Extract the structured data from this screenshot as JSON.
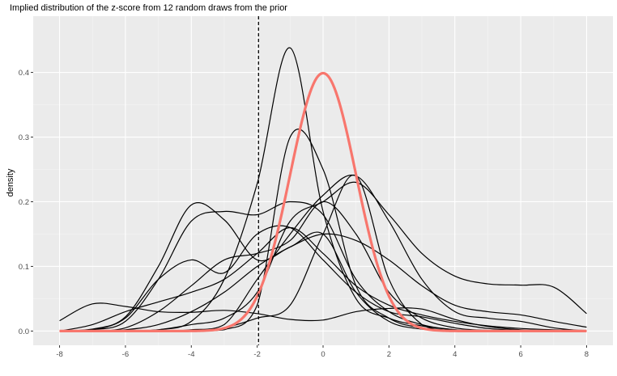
{
  "chart_data": {
    "type": "line",
    "title": "Implied distribution of the z-score from 12 random draws from the prior",
    "xlabel": "",
    "ylabel": "density",
    "xlim": [
      -8.8,
      8.8
    ],
    "ylim": [
      -0.022,
      0.487
    ],
    "x_ticks": [
      -8,
      -6,
      -4,
      -2,
      0,
      2,
      4,
      6,
      8
    ],
    "y_ticks": [
      0.0,
      0.1,
      0.2,
      0.3,
      0.4
    ],
    "y_tick_labels": [
      "0.0",
      "0.1",
      "0.2",
      "0.3",
      "0.4"
    ],
    "grid": true,
    "legend": "none",
    "reference_line": {
      "x": -1.96,
      "style": "dashed",
      "color": "#000000"
    },
    "reference_curve": {
      "distribution": "standard normal",
      "mean": 0,
      "sd": 1,
      "color": "#F8766D"
    },
    "series": [
      {
        "x": [
          -8,
          -7,
          -6,
          -5,
          -4,
          -3,
          -2,
          -1,
          0,
          1,
          2,
          3,
          4,
          5,
          6,
          7,
          8
        ],
        "values": [
          0.016,
          0.042,
          0.038,
          0.03,
          0.029,
          0.032,
          0.027,
          0.018,
          0.017,
          0.03,
          0.035,
          0.034,
          0.018,
          0.007,
          0.002,
          0.001,
          0.0
        ]
      },
      {
        "x": [
          -8,
          -7,
          -6,
          -5,
          -4,
          -3,
          -2,
          -1,
          0,
          1,
          2,
          3,
          4,
          5,
          6,
          7,
          8
        ],
        "values": [
          0.0,
          0.0,
          0.0,
          0.002,
          0.015,
          0.08,
          0.228,
          0.438,
          0.185,
          0.05,
          0.02,
          0.008,
          0.002,
          0.0,
          0.0,
          0.0,
          0.0
        ]
      },
      {
        "x": [
          -8,
          -7,
          -6,
          -5,
          -4,
          -3,
          -2,
          -1,
          0,
          1,
          2,
          3,
          4,
          5,
          6,
          7,
          8
        ],
        "values": [
          0.0,
          0.0,
          0.0,
          0.0,
          0.0,
          0.002,
          0.04,
          0.3,
          0.25,
          0.07,
          0.02,
          0.005,
          0.001,
          0.0,
          0.0,
          0.0,
          0.0
        ]
      },
      {
        "x": [
          -8,
          -7,
          -6,
          -5,
          -4,
          -3,
          -2,
          -1,
          0,
          1,
          2,
          3,
          4,
          5,
          6,
          7,
          8
        ],
        "values": [
          0.0,
          0.003,
          0.022,
          0.1,
          0.195,
          0.172,
          0.11,
          0.13,
          0.15,
          0.06,
          0.015,
          0.003,
          0.0,
          0.0,
          0.0,
          0.0,
          0.0
        ]
      },
      {
        "x": [
          -8,
          -7,
          -6,
          -5,
          -4,
          -3,
          -2,
          -1,
          0,
          1,
          2,
          3,
          4,
          5,
          6,
          7,
          8
        ],
        "values": [
          0.0,
          0.002,
          0.015,
          0.08,
          0.17,
          0.185,
          0.18,
          0.2,
          0.18,
          0.08,
          0.03,
          0.01,
          0.002,
          0.0,
          0.0,
          0.0,
          0.0
        ]
      },
      {
        "x": [
          -8,
          -7,
          -6,
          -5,
          -4,
          -3,
          -2,
          -1,
          0,
          1,
          2,
          3,
          4,
          5,
          6,
          7,
          8
        ],
        "values": [
          0.0,
          0.002,
          0.02,
          0.08,
          0.11,
          0.09,
          0.15,
          0.16,
          0.11,
          0.06,
          0.03,
          0.022,
          0.012,
          0.004,
          0.001,
          0.0,
          0.0
        ]
      },
      {
        "x": [
          -8,
          -7,
          -6,
          -5,
          -4,
          -3,
          -2,
          -1,
          0,
          1,
          2,
          3,
          4,
          5,
          6,
          7,
          8
        ],
        "values": [
          0.0,
          0.0,
          0.005,
          0.03,
          0.07,
          0.11,
          0.12,
          0.14,
          0.2,
          0.15,
          0.06,
          0.02,
          0.005,
          0.001,
          0.0,
          0.0,
          0.0
        ]
      },
      {
        "x": [
          -8,
          -7,
          -6,
          -5,
          -4,
          -3,
          -2,
          -1,
          0,
          1,
          2,
          3,
          4,
          5,
          6,
          7,
          8
        ],
        "values": [
          0.0,
          0.0,
          0.0,
          0.002,
          0.01,
          0.02,
          0.06,
          0.17,
          0.2,
          0.23,
          0.18,
          0.12,
          0.085,
          0.073,
          0.071,
          0.068,
          0.027
        ]
      },
      {
        "x": [
          -8,
          -7,
          -6,
          -5,
          -4,
          -3,
          -2,
          -1,
          0,
          1,
          2,
          3,
          4,
          5,
          6,
          7,
          8
        ],
        "values": [
          0.0,
          0.0,
          0.0,
          0.0,
          0.0,
          0.005,
          0.02,
          0.04,
          0.15,
          0.24,
          0.08,
          0.01,
          0.001,
          0.0,
          0.0,
          0.0,
          0.0
        ]
      },
      {
        "x": [
          -8,
          -7,
          -6,
          -5,
          -4,
          -3,
          -2,
          -1,
          0,
          1,
          2,
          3,
          4,
          5,
          6,
          7,
          8
        ],
        "values": [
          0.0,
          0.0,
          0.0,
          0.0,
          0.002,
          0.01,
          0.08,
          0.15,
          0.21,
          0.24,
          0.17,
          0.08,
          0.03,
          0.02,
          0.015,
          0.005,
          0.0
        ]
      },
      {
        "x": [
          -8,
          -7,
          -6,
          -5,
          -4,
          -3,
          -2,
          -1,
          0,
          1,
          2,
          3,
          4,
          5,
          6,
          7,
          8
        ],
        "values": [
          0.0,
          0.0,
          0.002,
          0.01,
          0.03,
          0.06,
          0.1,
          0.13,
          0.15,
          0.14,
          0.11,
          0.07,
          0.04,
          0.03,
          0.025,
          0.015,
          0.006
        ]
      },
      {
        "x": [
          -8,
          -7,
          -6,
          -5,
          -4,
          -3,
          -2,
          -1,
          0,
          1,
          2,
          3,
          4,
          5,
          6,
          7,
          8
        ],
        "values": [
          0.0,
          0.01,
          0.03,
          0.045,
          0.06,
          0.08,
          0.12,
          0.16,
          0.12,
          0.07,
          0.04,
          0.025,
          0.015,
          0.008,
          0.004,
          0.002,
          0.001
        ]
      }
    ]
  }
}
